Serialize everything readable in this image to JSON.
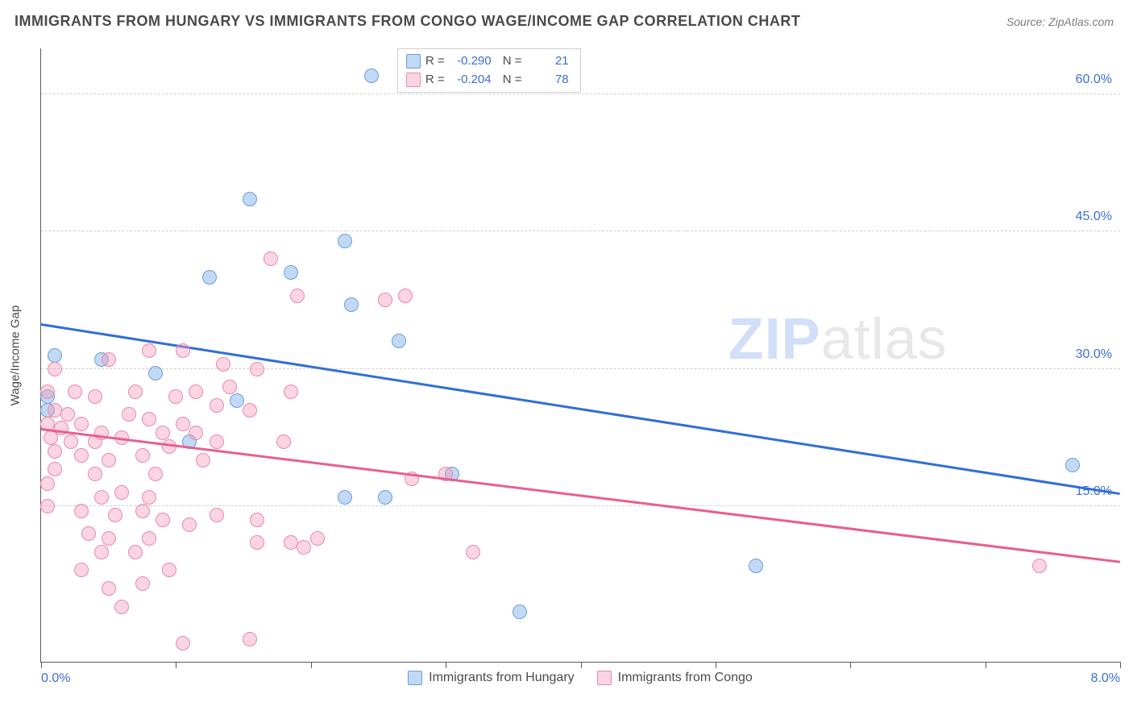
{
  "header": {
    "title": "IMMIGRANTS FROM HUNGARY VS IMMIGRANTS FROM CONGO WAGE/INCOME GAP CORRELATION CHART",
    "source": "Source: ZipAtlas.com"
  },
  "chart": {
    "type": "scatter",
    "ylabel": "Wage/Income Gap",
    "xlim": [
      0.0,
      8.0
    ],
    "ylim": [
      -2.0,
      65.0
    ],
    "x_ticks_minor": [
      0,
      1,
      2,
      3,
      4,
      5,
      6,
      7,
      8
    ],
    "x_ticks_labeled": [
      {
        "value": 0.0,
        "label": "0.0%"
      },
      {
        "value": 8.0,
        "label": "8.0%"
      }
    ],
    "y_grid": [
      {
        "value": 15.0,
        "label": "15.0%"
      },
      {
        "value": 30.0,
        "label": "30.0%"
      },
      {
        "value": 45.0,
        "label": "45.0%"
      },
      {
        "value": 60.0,
        "label": "60.0%"
      }
    ],
    "background_color": "#ffffff",
    "grid_color": "#d0d0d0",
    "axis_color": "#5a5a5a",
    "watermark": {
      "part1": "ZIP",
      "part2": "atlas"
    },
    "series": [
      {
        "key": "hungary",
        "label": "Immigrants from Hungary",
        "color_fill": "rgba(120,170,235,0.45)",
        "color_stroke": "#6a9ed8",
        "marker_radius": 9,
        "R": "-0.290",
        "N": "21",
        "trend": {
          "x1": 0.0,
          "y1": 35.0,
          "x2": 8.0,
          "y2": 16.5,
          "color": "#2f6fd6",
          "width": 2.8
        },
        "points": [
          [
            2.45,
            62.0
          ],
          [
            2.75,
            62.0
          ],
          [
            1.55,
            48.5
          ],
          [
            2.25,
            44.0
          ],
          [
            1.25,
            40.0
          ],
          [
            1.85,
            40.5
          ],
          [
            2.3,
            37.0
          ],
          [
            0.1,
            31.5
          ],
          [
            0.45,
            31.0
          ],
          [
            2.65,
            33.0
          ],
          [
            0.05,
            27.0
          ],
          [
            0.85,
            29.5
          ],
          [
            1.45,
            26.5
          ],
          [
            3.05,
            18.5
          ],
          [
            2.25,
            16.0
          ],
          [
            2.55,
            16.0
          ],
          [
            0.05,
            25.5
          ],
          [
            1.1,
            22.0
          ],
          [
            5.3,
            8.5
          ],
          [
            3.55,
            3.5
          ],
          [
            7.65,
            19.5
          ]
        ]
      },
      {
        "key": "congo",
        "label": "Immigrants from Congo",
        "color_fill": "rgba(245,150,180,0.40)",
        "color_stroke": "#e88aa8",
        "marker_radius": 9,
        "R": "-0.204",
        "N": "78",
        "trend": {
          "x1": 0.0,
          "y1": 23.5,
          "x2": 8.0,
          "y2": 9.0,
          "color": "#e85f8f",
          "width": 2.5
        },
        "points": [
          [
            1.7,
            42.0
          ],
          [
            1.9,
            38.0
          ],
          [
            2.7,
            38.0
          ],
          [
            2.55,
            37.5
          ],
          [
            0.8,
            32.0
          ],
          [
            1.05,
            32.0
          ],
          [
            0.5,
            31.0
          ],
          [
            1.35,
            30.5
          ],
          [
            1.6,
            30.0
          ],
          [
            0.1,
            30.0
          ],
          [
            0.05,
            27.5
          ],
          [
            0.25,
            27.5
          ],
          [
            0.4,
            27.0
          ],
          [
            0.7,
            27.5
          ],
          [
            1.0,
            27.0
          ],
          [
            1.15,
            27.5
          ],
          [
            1.4,
            28.0
          ],
          [
            1.85,
            27.5
          ],
          [
            1.3,
            26.0
          ],
          [
            0.1,
            25.5
          ],
          [
            0.2,
            25.0
          ],
          [
            0.05,
            24.0
          ],
          [
            0.3,
            24.0
          ],
          [
            0.15,
            23.5
          ],
          [
            0.45,
            23.0
          ],
          [
            0.65,
            25.0
          ],
          [
            0.8,
            24.5
          ],
          [
            0.9,
            23.0
          ],
          [
            1.05,
            24.0
          ],
          [
            1.15,
            23.0
          ],
          [
            0.07,
            22.5
          ],
          [
            0.22,
            22.0
          ],
          [
            0.4,
            22.0
          ],
          [
            0.6,
            22.5
          ],
          [
            0.95,
            21.5
          ],
          [
            1.3,
            22.0
          ],
          [
            1.8,
            22.0
          ],
          [
            1.55,
            25.5
          ],
          [
            0.1,
            21.0
          ],
          [
            0.3,
            20.5
          ],
          [
            0.5,
            20.0
          ],
          [
            0.75,
            20.5
          ],
          [
            0.1,
            19.0
          ],
          [
            0.4,
            18.5
          ],
          [
            3.0,
            18.5
          ],
          [
            2.75,
            18.0
          ],
          [
            0.05,
            17.5
          ],
          [
            0.45,
            16.0
          ],
          [
            0.6,
            16.5
          ],
          [
            0.8,
            16.0
          ],
          [
            0.05,
            15.0
          ],
          [
            0.3,
            14.5
          ],
          [
            0.55,
            14.0
          ],
          [
            0.75,
            14.5
          ],
          [
            0.9,
            13.5
          ],
          [
            1.1,
            13.0
          ],
          [
            1.3,
            14.0
          ],
          [
            1.6,
            13.5
          ],
          [
            0.35,
            12.0
          ],
          [
            0.5,
            11.5
          ],
          [
            0.8,
            11.5
          ],
          [
            0.45,
            10.0
          ],
          [
            0.7,
            10.0
          ],
          [
            1.6,
            11.0
          ],
          [
            2.05,
            11.5
          ],
          [
            1.95,
            10.5
          ],
          [
            0.3,
            8.0
          ],
          [
            0.95,
            8.0
          ],
          [
            0.5,
            6.0
          ],
          [
            0.75,
            6.5
          ],
          [
            1.85,
            11.0
          ],
          [
            3.2,
            10.0
          ],
          [
            0.6,
            4.0
          ],
          [
            1.05,
            0.0
          ],
          [
            1.55,
            0.5
          ],
          [
            0.85,
            18.5
          ],
          [
            1.2,
            20.0
          ],
          [
            7.4,
            8.5
          ]
        ]
      }
    ],
    "legend_top_labels": {
      "R": "R =",
      "N": "N ="
    }
  }
}
